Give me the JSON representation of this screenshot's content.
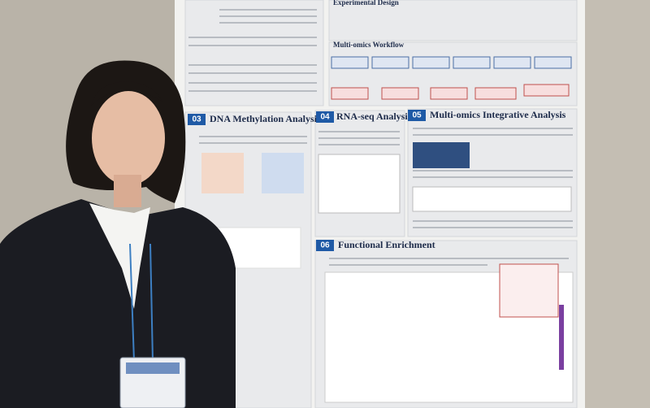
{
  "poster": {
    "top_headings": [
      "Experimental Design",
      "Multi-omics Workflow"
    ],
    "sections": [
      {
        "number": "03",
        "title": "DNA Methylation Analysis"
      },
      {
        "number": "04",
        "title": "RNA-seq Analysis"
      },
      {
        "number": "05",
        "title": "Multi-omics Integrative Analysis"
      },
      {
        "number": "06",
        "title": "Functional Enrichment"
      }
    ]
  }
}
